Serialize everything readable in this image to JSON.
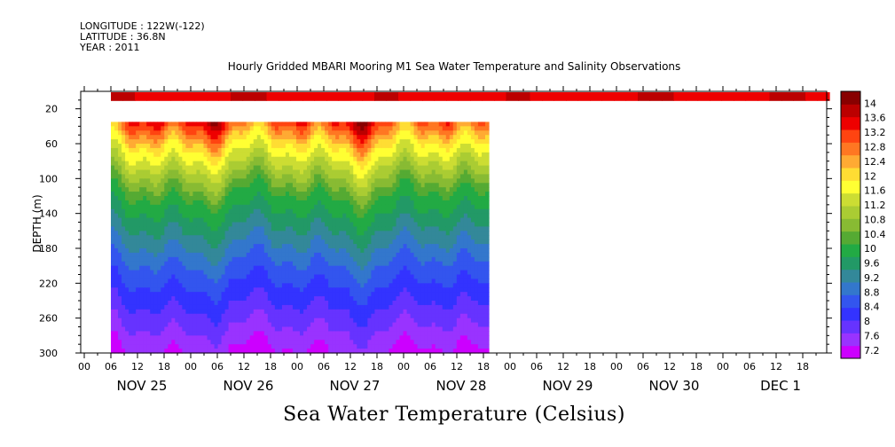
{
  "header": {
    "longitude": "LONGITUDE : 122W(-122)",
    "latitude": "LATITUDE : 36.8N",
    "year": "YEAR : 2011"
  },
  "chart_data": {
    "type": "heatmap",
    "title": "Hourly Gridded MBARI Mooring M1 Sea Water Temperature and Salinity Observations",
    "xlabel": "Sea Water Temperature (Celsius)",
    "ylabel": "DEPTH (m)",
    "ylim": [
      300,
      0
    ],
    "y_ticks": [
      20,
      60,
      100,
      140,
      180,
      220,
      260,
      300
    ],
    "x_hour_ticks": [
      "00",
      "06",
      "12",
      "18",
      "00",
      "06",
      "12",
      "18",
      "00",
      "06",
      "12",
      "18",
      "00",
      "06",
      "12",
      "18",
      "00",
      "06",
      "12",
      "18",
      "00",
      "06",
      "12",
      "18",
      "00",
      "06",
      "12",
      "18"
    ],
    "x_day_labels": [
      "NOV 25",
      "NOV 26",
      "NOV 27",
      "NOV 28",
      "NOV 29",
      "NOV 30",
      "DEC  1"
    ],
    "colorbar_labels": [
      "14",
      "13.6",
      "13.2",
      "12.8",
      "12.4",
      "12",
      "11.6",
      "11.2",
      "10.8",
      "10.4",
      "10",
      "9.6",
      "9.2",
      "8.8",
      "8.4",
      "8",
      "7.6",
      "7.2"
    ],
    "colorbar_range": [
      7.2,
      14.2
    ],
    "colors": [
      "#cc00ff",
      "#9933ff",
      "#6633ff",
      "#3333ff",
      "#3355ee",
      "#3377cc",
      "#338899",
      "#229966",
      "#22aa44",
      "#55aa33",
      "#88bb33",
      "#aacc33",
      "#ccdd33",
      "#ffff33",
      "#ffdd33",
      "#ffaa33",
      "#ff7722",
      "#ff4411",
      "#ee0000",
      "#bb0000",
      "#880000"
    ],
    "data_x_range_days": [
      0.25,
      3.8
    ],
    "depth_range_m": [
      35,
      300
    ],
    "surface_depth_m": 10,
    "surface_x_range_days": [
      0.25,
      7.0
    ]
  }
}
